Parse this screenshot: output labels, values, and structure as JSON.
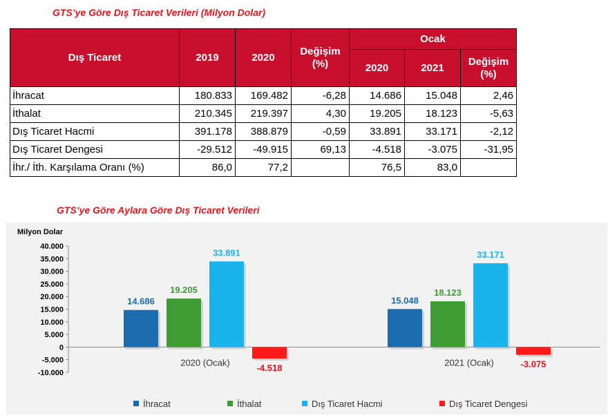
{
  "titles": {
    "table": "GTS’ye Göre Dış Ticaret Verileri (Milyon Dolar)",
    "chart": "GTS’ye Göre Aylara Göre Dış Ticaret Verileri"
  },
  "table": {
    "header": {
      "first": "Dış Ticaret",
      "y2019": "2019",
      "y2020": "2020",
      "change": "Değişim (%)",
      "group": "Ocak",
      "sub2020": "2020",
      "sub2021": "2021",
      "subchange": "Değişim (%)"
    },
    "rows": [
      {
        "label": "İhracat",
        "v2019": "180.833",
        "v2020": "169.482",
        "chg": "-6,28",
        "o2020": "14.686",
        "o2021": "15.048",
        "ochg": "2,46"
      },
      {
        "label": "İthalat",
        "v2019": "210.345",
        "v2020": "219.397",
        "chg": "4,30",
        "o2020": "19.205",
        "o2021": "18.123",
        "ochg": "-5,63"
      },
      {
        "label": "Dış Ticaret Hacmi",
        "v2019": "391.178",
        "v2020": "388.879",
        "chg": "-0,59",
        "o2020": "33.891",
        "o2021": "33.171",
        "ochg": "-2,12"
      },
      {
        "label": "Dış Ticaret Dengesi",
        "v2019": "-29.512",
        "v2020": "-49.915",
        "chg": "69,13",
        "o2020": "-4.518",
        "o2021": "-3.075",
        "ochg": "-31,95"
      },
      {
        "label": "İhr./ İth. Karşılama Oranı (%)",
        "v2019": "86,0",
        "v2020": "77,2",
        "chg": "",
        "o2020": "76,5",
        "o2021": "83,0",
        "ochg": ""
      }
    ]
  },
  "chart_data": {
    "type": "bar",
    "ylabel": "Milyon Dolar",
    "ylim": [
      -10000,
      40000
    ],
    "yticks": [
      {
        "value": 40000,
        "label": "40.000"
      },
      {
        "value": 35000,
        "label": "35.000"
      },
      {
        "value": 30000,
        "label": "30.000"
      },
      {
        "value": 25000,
        "label": "25.000"
      },
      {
        "value": 20000,
        "label": "20.000"
      },
      {
        "value": 15000,
        "label": "15.000"
      },
      {
        "value": 10000,
        "label": "10.000"
      },
      {
        "value": 5000,
        "label": "5.000"
      },
      {
        "value": 0,
        "label": "0"
      },
      {
        "value": -5000,
        "label": "-5.000"
      },
      {
        "value": -10000,
        "label": "-10.000"
      }
    ],
    "categories": [
      "2020 (Ocak)",
      "2021 (Ocak)"
    ],
    "series": [
      {
        "name": "İhracat",
        "color": "#1c6cb0",
        "label_color": "#1c6cb0",
        "values": [
          14686,
          15048
        ],
        "labels": [
          "14.686",
          "15.048"
        ]
      },
      {
        "name": "İthalat",
        "color": "#3f9b34",
        "label_color": "#3f9b34",
        "values": [
          19205,
          18123
        ],
        "labels": [
          "19.205",
          "18.123"
        ]
      },
      {
        "name": "Dış Ticaret Hacmi",
        "color": "#19b4ee",
        "label_color": "#19b4ee",
        "values": [
          33891,
          33171
        ],
        "labels": [
          "33.891",
          "33.171"
        ]
      },
      {
        "name": "Dış Ticaret Dengesi",
        "color": "#ff1a1a",
        "label_color": "#e8141c",
        "values": [
          -4518,
          -3075
        ],
        "labels": [
          "-4.518",
          "-3.075"
        ]
      }
    ],
    "legend_position": "bottom",
    "grid": false
  }
}
